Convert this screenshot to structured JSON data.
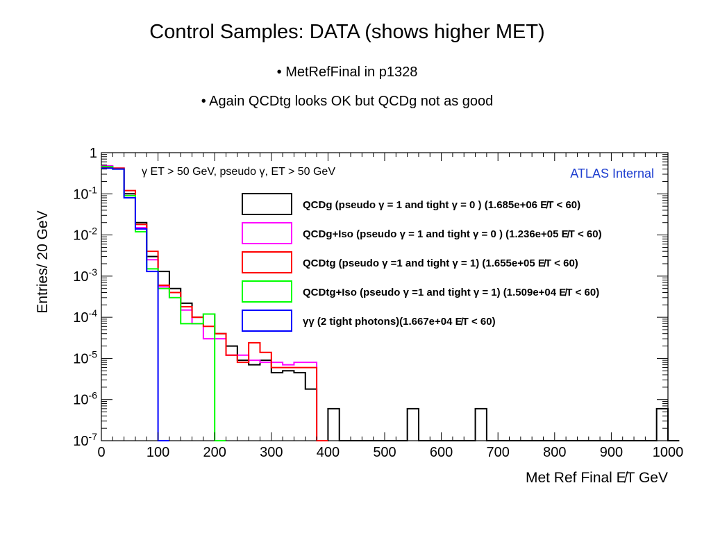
{
  "slide": {
    "title": "Control Samples: DATA (shows higher MET)",
    "bullets": [
      "• MetRefFinal in p1328",
      "• Again QCDtg looks OK but QCDg not as good"
    ]
  },
  "chart_data": {
    "type": "line",
    "style": "histogram-step",
    "title": "",
    "xlabel": "Met Ref Final  E̸T GeV",
    "ylabel": "Entries/ 20 GeV",
    "xlim": [
      0,
      1000
    ],
    "ylim": [
      1e-07,
      1
    ],
    "yscale": "log",
    "bin_width": 20,
    "x_tick_labels": [
      "0",
      "100",
      "200",
      "300",
      "400",
      "500",
      "600",
      "700",
      "800",
      "900",
      "1000"
    ],
    "y_tick_labels": [
      "1",
      "10-1",
      "10-2",
      "10-3",
      "10-4",
      "10-5",
      "10-6",
      "10-7"
    ],
    "selection_text": "γ ET > 50 GeV, pseudo γ, ET > 50 GeV",
    "watermark": "ATLAS Internal",
    "watermark_color": "#1f3fd0",
    "legend_position": "upper-right",
    "series": [
      {
        "name": "QCDg (pseudo γ = 1 and tight γ = 0 ) (1.685e+06  E̸T < 60)",
        "color": "#000000",
        "bins": [
          [
            0,
            0.45
          ],
          [
            20,
            0.42
          ],
          [
            40,
            0.1
          ],
          [
            60,
            0.02
          ],
          [
            80,
            0.003
          ],
          [
            100,
            0.0013
          ],
          [
            120,
            0.0005
          ],
          [
            140,
            0.00022
          ],
          [
            160,
            0.0001
          ],
          [
            180,
            0.00012
          ],
          [
            200,
            4e-05
          ],
          [
            220,
            2e-05
          ],
          [
            240,
            9e-06
          ],
          [
            260,
            7e-06
          ],
          [
            280,
            9e-06
          ],
          [
            300,
            4.5e-06
          ],
          [
            320,
            5e-06
          ],
          [
            340,
            4.5e-06
          ],
          [
            360,
            1.8e-06
          ],
          [
            380,
            1e-07
          ],
          [
            400,
            6e-07
          ],
          [
            420,
            1e-07
          ],
          [
            540,
            6e-07
          ],
          [
            560,
            1e-07
          ],
          [
            660,
            6e-07
          ],
          [
            680,
            1e-07
          ],
          [
            980,
            6e-07
          ],
          [
            1000,
            1e-07
          ]
        ]
      },
      {
        "name": "QCDg+Iso (pseudo γ = 1 and tight γ = 0 ) (1.236e+05  E̸T < 60)",
        "color": "#ff00ff",
        "bins": [
          [
            0,
            0.48
          ],
          [
            20,
            0.42
          ],
          [
            40,
            0.09
          ],
          [
            60,
            0.015
          ],
          [
            80,
            0.0025
          ],
          [
            100,
            0.00055
          ],
          [
            120,
            0.0003
          ],
          [
            140,
            0.00015
          ],
          [
            160,
            7e-05
          ],
          [
            180,
            3e-05
          ],
          [
            200,
            3e-05
          ],
          [
            220,
            1.2e-05
          ],
          [
            240,
            1.2e-05
          ],
          [
            260,
            9e-06
          ],
          [
            280,
            8e-06
          ],
          [
            300,
            8e-06
          ],
          [
            320,
            7e-06
          ],
          [
            340,
            8e-06
          ],
          [
            360,
            8e-06
          ],
          [
            380,
            1e-07
          ]
        ]
      },
      {
        "name": "QCDtg (pseudo γ =1 and tight γ = 1)  (1.655e+05  E̸T < 60)",
        "color": "#ff0000",
        "bins": [
          [
            0,
            0.45
          ],
          [
            20,
            0.42
          ],
          [
            40,
            0.12
          ],
          [
            60,
            0.018
          ],
          [
            80,
            0.004
          ],
          [
            100,
            0.0006
          ],
          [
            120,
            0.0004
          ],
          [
            140,
            0.00018
          ],
          [
            160,
            0.0001
          ],
          [
            180,
            6e-05
          ],
          [
            200,
            4e-05
          ],
          [
            220,
            1.2e-05
          ],
          [
            240,
            8e-06
          ],
          [
            260,
            2.4e-05
          ],
          [
            280,
            1.4e-05
          ],
          [
            300,
            6e-06
          ],
          [
            320,
            6e-06
          ],
          [
            340,
            6e-06
          ],
          [
            360,
            6e-06
          ],
          [
            380,
            1e-07
          ]
        ]
      },
      {
        "name": "QCDtg+Iso (pseudo γ =1 and tight γ = 1) (1.509e+04  E̸T < 60)",
        "color": "#00ff00",
        "bins": [
          [
            0,
            0.46
          ],
          [
            20,
            0.4
          ],
          [
            40,
            0.09
          ],
          [
            60,
            0.012
          ],
          [
            80,
            0.0015
          ],
          [
            100,
            0.0005
          ],
          [
            120,
            0.0003
          ],
          [
            140,
            7e-05
          ],
          [
            160,
            7e-05
          ],
          [
            180,
            0.00012
          ],
          [
            200,
            1e-07
          ]
        ]
      },
      {
        "name": "γγ (2 tight photons)(1.667e+04  E̸T < 60)",
        "color": "#0000ff",
        "bins": [
          [
            0,
            0.42
          ],
          [
            20,
            0.4
          ],
          [
            40,
            0.08
          ],
          [
            60,
            0.014
          ],
          [
            80,
            0.0013
          ],
          [
            100,
            1e-07
          ]
        ]
      }
    ]
  }
}
